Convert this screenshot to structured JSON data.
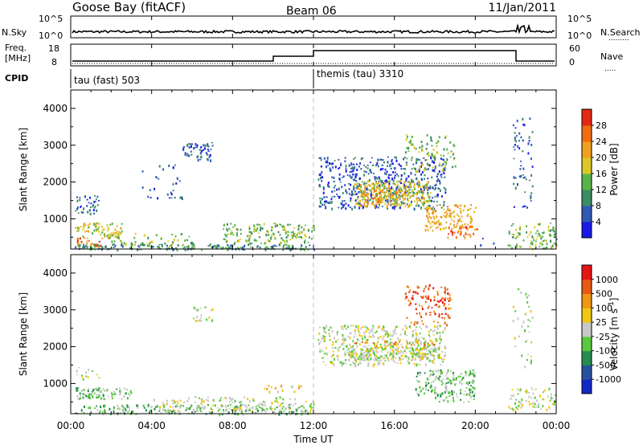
{
  "header": {
    "station": "Goose Bay (fitACF)",
    "beam": "Beam 06",
    "date": "11/Jan/2011"
  },
  "nsky_panel": {
    "left_label": "N.Sky",
    "right_label": "N.Search",
    "left_ticks": [
      "10^5",
      "10^0"
    ],
    "right_ticks": [
      "10^5",
      "10^0"
    ]
  },
  "freq_panel": {
    "left_label_line1": "Freq.",
    "left_label_line2": "[MHz]",
    "right_label": "Nave",
    "left_ticks": [
      "18",
      "8"
    ],
    "right_ticks": [
      "60",
      "0"
    ]
  },
  "cpid": {
    "label": "CPID",
    "segments": [
      {
        "start_hour": 0,
        "text": "tau (fast) 503"
      },
      {
        "start_hour": 12,
        "text": "themis (tau) 3310"
      }
    ]
  },
  "chart_data": [
    {
      "type": "heatmap",
      "name": "power",
      "ylabel": "Slant Range [km]",
      "ylim": [
        180,
        4500
      ],
      "yticks": [
        1000,
        2000,
        3000,
        4000
      ],
      "xlim_hours": [
        0,
        24
      ],
      "colorbar": {
        "label": "Power [dB]",
        "ticks": [
          "4",
          "8",
          "12",
          "16",
          "20",
          "24",
          "28"
        ],
        "colors": [
          "#1a1ae6",
          "#2f5ab4",
          "#3c8c64",
          "#58b44a",
          "#dcc828",
          "#f0a020",
          "#f06e10",
          "#e62814"
        ]
      },
      "regions": [
        {
          "t": [
            0.2,
            1.4
          ],
          "r": [
            1150,
            1650
          ],
          "level": 1,
          "density": 0.5
        },
        {
          "t": [
            0.2,
            2.5
          ],
          "r": [
            500,
            900
          ],
          "level": 4,
          "density": 0.7
        },
        {
          "t": [
            0.3,
            1.6
          ],
          "r": [
            250,
            500
          ],
          "level": 6,
          "density": 0.6
        },
        {
          "t": [
            0.2,
            12.0
          ],
          "r": [
            180,
            330
          ],
          "level": 2,
          "density": 0.8
        },
        {
          "t": [
            2.0,
            6.0
          ],
          "r": [
            280,
            620
          ],
          "level": 3,
          "density": 0.3
        },
        {
          "t": [
            3.5,
            5.5
          ],
          "r": [
            1500,
            2500
          ],
          "level": 1,
          "density": 0.12
        },
        {
          "t": [
            5.5,
            7.0
          ],
          "r": [
            2600,
            3100
          ],
          "level": 1,
          "density": 0.6
        },
        {
          "t": [
            7.5,
            12.0
          ],
          "r": [
            350,
            900
          ],
          "level": 3,
          "density": 0.5
        },
        {
          "t": [
            12.2,
            18.5
          ],
          "r": [
            1300,
            2700
          ],
          "level": 1,
          "density": 0.45
        },
        {
          "t": [
            14.0,
            17.8
          ],
          "r": [
            1350,
            2050
          ],
          "level": 4,
          "density": 0.85
        },
        {
          "t": [
            14.5,
            16.5
          ],
          "r": [
            1400,
            1800
          ],
          "level": 5,
          "density": 0.6
        },
        {
          "t": [
            16.5,
            19.0
          ],
          "r": [
            2300,
            3300
          ],
          "level": 3,
          "density": 0.3
        },
        {
          "t": [
            17.5,
            20.0
          ],
          "r": [
            700,
            1400
          ],
          "level": 5,
          "density": 0.6
        },
        {
          "t": [
            18.5,
            20.2
          ],
          "r": [
            500,
            800
          ],
          "level": 6,
          "density": 0.4
        },
        {
          "t": [
            20.2,
            21.6
          ],
          "r": [
            300,
            500
          ],
          "level": 2,
          "density": 0.1
        },
        {
          "t": [
            21.6,
            24.0
          ],
          "r": [
            200,
            900
          ],
          "level": 3,
          "density": 0.45
        },
        {
          "t": [
            21.8,
            22.8
          ],
          "r": [
            1200,
            3800
          ],
          "level": 1,
          "density": 0.18
        }
      ]
    },
    {
      "type": "heatmap",
      "name": "velocity",
      "ylabel": "Slant Range [km]",
      "ylim": [
        180,
        4500
      ],
      "yticks": [
        1000,
        2000,
        3000,
        4000
      ],
      "xlim_hours": [
        0,
        24
      ],
      "xticks": [
        "00:00",
        "04:00",
        "08:00",
        "12:00",
        "16:00",
        "20:00",
        "00:00"
      ],
      "xlabel": "Time UT",
      "colorbar": {
        "label": "Velocity [m s^-1]",
        "ticks": [
          "1000",
          "500",
          "100",
          "25",
          "-25",
          "-100",
          "-500",
          "-1000"
        ],
        "colors": [
          "#1428c8",
          "#2850a0",
          "#288c50",
          "#5ac83c",
          "#c8c8c8",
          "#f0c814",
          "#f09614",
          "#e65a14",
          "#e61414"
        ]
      },
      "regions": [
        {
          "t": [
            0.2,
            3.0
          ],
          "r": [
            600,
            900
          ],
          "level": 3,
          "density": 0.8
        },
        {
          "t": [
            0.2,
            1.5
          ],
          "r": [
            1100,
            1500
          ],
          "level": 4,
          "density": 0.2
        },
        {
          "t": [
            0.2,
            12.0
          ],
          "r": [
            180,
            450
          ],
          "level": 3,
          "density": 0.5
        },
        {
          "t": [
            4.0,
            12.0
          ],
          "r": [
            250,
            650
          ],
          "level": 4,
          "density": 0.35
        },
        {
          "t": [
            9.5,
            11.5
          ],
          "r": [
            800,
            1000
          ],
          "level": 5,
          "density": 0.3
        },
        {
          "t": [
            6.0,
            7.0
          ],
          "r": [
            2700,
            3100
          ],
          "level": 4,
          "density": 0.4
        },
        {
          "t": [
            12.2,
            18.5
          ],
          "r": [
            1500,
            2600
          ],
          "level": 4,
          "density": 0.5
        },
        {
          "t": [
            13.5,
            18.2
          ],
          "r": [
            1650,
            2050
          ],
          "level": 4,
          "density": 0.85
        },
        {
          "t": [
            14.0,
            18.0
          ],
          "r": [
            2000,
            2200
          ],
          "level": 6,
          "density": 0.3
        },
        {
          "t": [
            16.5,
            18.8
          ],
          "r": [
            2600,
            3700
          ],
          "level": 7,
          "density": 0.35
        },
        {
          "t": [
            17.0,
            20.0
          ],
          "r": [
            700,
            1400
          ],
          "level": 3,
          "density": 0.55
        },
        {
          "t": [
            18.0,
            20.0
          ],
          "r": [
            500,
            800
          ],
          "level": 3,
          "density": 0.35
        },
        {
          "t": [
            21.6,
            24.0
          ],
          "r": [
            300,
            900
          ],
          "level": 4,
          "density": 0.4
        },
        {
          "t": [
            21.8,
            22.8
          ],
          "r": [
            1300,
            3600
          ],
          "level": 4,
          "density": 0.12
        }
      ]
    }
  ]
}
